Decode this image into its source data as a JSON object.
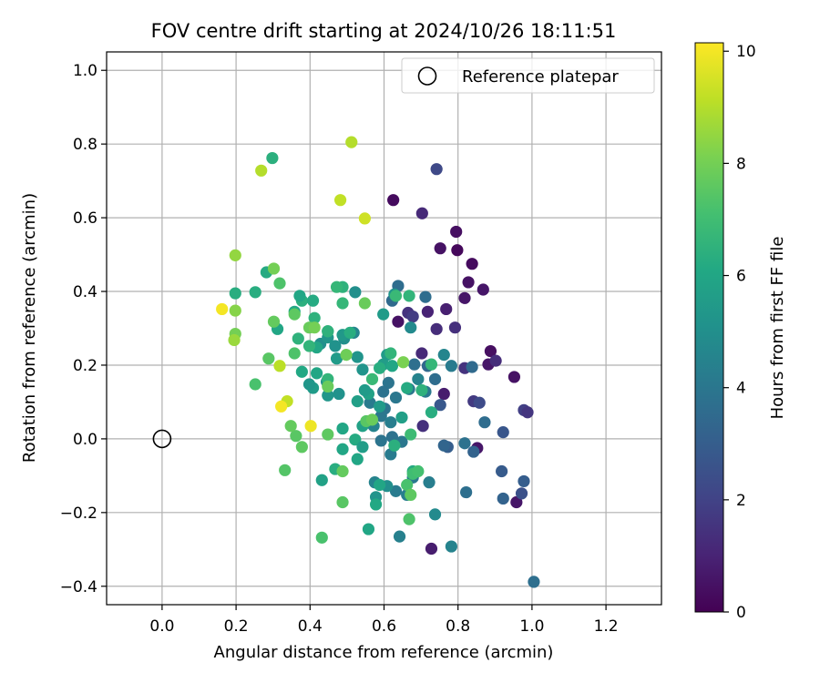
{
  "chart_data": {
    "type": "scatter",
    "title": "FOV centre drift starting at 2024/10/26 18:11:51",
    "xlabel": "Angular distance from reference (arcmin)",
    "ylabel": "Rotation from reference (arcmin)",
    "xlim": [
      -0.15,
      1.35
    ],
    "ylim": [
      -0.45,
      1.05
    ],
    "grid": true,
    "xticks": [
      0.0,
      0.2,
      0.4,
      0.6,
      0.8,
      1.0,
      1.2
    ],
    "xtick_labels": [
      "0.0",
      "0.2",
      "0.4",
      "0.6",
      "0.8",
      "1.0",
      "1.2"
    ],
    "yticks": [
      -0.4,
      -0.2,
      0.0,
      0.2,
      0.4,
      0.6,
      0.8,
      1.0
    ],
    "ytick_labels": [
      "−0.4",
      "−0.2",
      "0.0",
      "0.2",
      "0.4",
      "0.6",
      "0.8",
      "1.0"
    ],
    "legend": {
      "position": "top-right",
      "label": "Reference platepar"
    },
    "reference_point": {
      "x": 0.0,
      "y": 0.0
    },
    "colorbar": {
      "label": "Hours from first FF file",
      "range": [
        0,
        10.15
      ],
      "ticks": [
        0,
        2,
        4,
        6,
        8,
        10
      ],
      "tick_labels": [
        "0",
        "2",
        "4",
        "6",
        "8",
        "10"
      ],
      "colormap": "viridis"
    },
    "points": [
      [
        0.625,
        0.648,
        0.3
      ],
      [
        0.703,
        0.612,
        1.2
      ],
      [
        0.795,
        0.562,
        0.4
      ],
      [
        0.752,
        0.517,
        0.5
      ],
      [
        0.798,
        0.512,
        0.2
      ],
      [
        0.838,
        0.475,
        0.3
      ],
      [
        0.828,
        0.425,
        0.5
      ],
      [
        0.868,
        0.405,
        0.6
      ],
      [
        0.818,
        0.382,
        0.6
      ],
      [
        0.742,
        0.732,
        2.2
      ],
      [
        0.768,
        0.352,
        0.9
      ],
      [
        0.718,
        0.345,
        1.0
      ],
      [
        0.665,
        0.342,
        1.5
      ],
      [
        0.678,
        0.332,
        1.8
      ],
      [
        0.638,
        0.318,
        0.5
      ],
      [
        0.742,
        0.298,
        1.3
      ],
      [
        0.792,
        0.302,
        1.4
      ],
      [
        0.888,
        0.238,
        0.4
      ],
      [
        0.882,
        0.202,
        0.6
      ],
      [
        0.902,
        0.212,
        1.3
      ],
      [
        0.702,
        0.232,
        1.2
      ],
      [
        0.762,
        0.122,
        0.8
      ],
      [
        0.818,
        0.192,
        1.5
      ],
      [
        0.842,
        0.102,
        1.7
      ],
      [
        0.952,
        0.168,
        0.5
      ],
      [
        0.978,
        0.078,
        1.9
      ],
      [
        0.988,
        0.072,
        1.6
      ],
      [
        0.852,
        -0.025,
        0.6
      ],
      [
        0.958,
        -0.172,
        0.6
      ],
      [
        0.728,
        -0.298,
        0.8
      ],
      [
        0.705,
        0.035,
        1.4
      ],
      [
        0.752,
        0.092,
        2.8
      ],
      [
        0.858,
        0.098,
        2.3
      ],
      [
        0.922,
        0.018,
        2.7
      ],
      [
        0.918,
        -0.088,
        2.9
      ],
      [
        0.978,
        -0.115,
        3.0
      ],
      [
        0.972,
        -0.148,
        2.5
      ],
      [
        0.922,
        -0.162,
        3.2
      ],
      [
        0.842,
        -0.035,
        3.2
      ],
      [
        0.772,
        -0.022,
        3.0
      ],
      [
        0.762,
        -0.018,
        3.3
      ],
      [
        0.818,
        -0.012,
        3.8
      ],
      [
        0.822,
        -0.145,
        3.7
      ],
      [
        0.872,
        0.045,
        3.6
      ],
      [
        1.005,
        -0.388,
        3.7
      ],
      [
        0.622,
        0.375,
        3.5
      ],
      [
        0.638,
        0.415,
        3.6
      ],
      [
        0.712,
        0.385,
        3.6
      ],
      [
        0.682,
        0.202,
        3.7
      ],
      [
        0.718,
        0.198,
        3.4
      ],
      [
        0.838,
        0.195,
        3.5
      ],
      [
        0.782,
        0.198,
        4.2
      ],
      [
        0.738,
        0.162,
        3.6
      ],
      [
        0.712,
        0.128,
        4.1
      ],
      [
        0.668,
        0.135,
        4.0
      ],
      [
        0.632,
        0.112,
        4.0
      ],
      [
        0.612,
        0.152,
        3.9
      ],
      [
        0.598,
        0.128,
        3.8
      ],
      [
        0.562,
        0.098,
        4.2
      ],
      [
        0.602,
        0.082,
        3.9
      ],
      [
        0.592,
        0.062,
        4.0
      ],
      [
        0.618,
        0.045,
        4.3
      ],
      [
        0.572,
        0.035,
        4.5
      ],
      [
        0.622,
        0.005,
        3.8
      ],
      [
        0.592,
        -0.005,
        3.9
      ],
      [
        0.648,
        -0.008,
        4.0
      ],
      [
        0.618,
        -0.042,
        4.2
      ],
      [
        0.678,
        -0.105,
        4.1
      ],
      [
        0.722,
        -0.118,
        4.3
      ],
      [
        0.632,
        -0.142,
        4.2
      ],
      [
        0.662,
        -0.152,
        4.3
      ],
      [
        0.738,
        -0.205,
        4.8
      ],
      [
        0.782,
        -0.292,
        4.5
      ],
      [
        0.642,
        -0.265,
        4.4
      ],
      [
        0.575,
        -0.118,
        4.5
      ],
      [
        0.608,
        -0.128,
        5.0
      ],
      [
        0.578,
        -0.158,
        5.2
      ],
      [
        0.692,
        0.162,
        4.5
      ],
      [
        0.762,
        0.228,
        4.6
      ],
      [
        0.672,
        0.302,
        4.8
      ],
      [
        0.628,
        0.392,
        5.2
      ],
      [
        0.598,
        0.338,
        5.5
      ],
      [
        0.518,
        0.288,
        4.6
      ],
      [
        0.492,
        0.272,
        5.0
      ],
      [
        0.468,
        0.252,
        5.1
      ],
      [
        0.428,
        0.258,
        5.0
      ],
      [
        0.448,
        0.275,
        5.3
      ],
      [
        0.522,
        0.398,
        5.0
      ],
      [
        0.488,
        0.282,
        5.4
      ],
      [
        0.445,
        0.155,
        5.0
      ],
      [
        0.448,
        0.118,
        5.3
      ],
      [
        0.478,
        0.122,
        5.1
      ],
      [
        0.408,
        0.138,
        5.5
      ],
      [
        0.398,
        0.148,
        5.3
      ],
      [
        0.472,
        0.218,
        5.5
      ],
      [
        0.528,
        0.222,
        5.2
      ],
      [
        0.542,
        0.188,
        5.2
      ],
      [
        0.558,
        0.122,
        5.8
      ],
      [
        0.598,
        0.202,
        5.6
      ],
      [
        0.608,
        0.228,
        5.5
      ],
      [
        0.548,
        0.132,
        5.5
      ],
      [
        0.622,
        0.198,
        6.0
      ],
      [
        0.588,
        0.088,
        5.5
      ],
      [
        0.528,
        0.102,
        5.7
      ],
      [
        0.648,
        0.058,
        5.7
      ],
      [
        0.542,
        0.035,
        5.8
      ],
      [
        0.522,
        -0.002,
        6.2
      ],
      [
        0.542,
        -0.022,
        5.6
      ],
      [
        0.528,
        -0.055,
        6.0
      ],
      [
        0.488,
        -0.028,
        6.0
      ],
      [
        0.488,
        0.028,
        6.0
      ],
      [
        0.558,
        -0.245,
        6.0
      ],
      [
        0.578,
        -0.178,
        6.1
      ],
      [
        0.588,
        -0.125,
        6.0
      ],
      [
        0.678,
        -0.088,
        6.2
      ],
      [
        0.468,
        -0.082,
        6.3
      ],
      [
        0.432,
        -0.112,
        5.8
      ],
      [
        0.378,
        0.182,
        6.1
      ],
      [
        0.418,
        0.178,
        6.0
      ],
      [
        0.418,
        0.248,
        6.0
      ],
      [
        0.448,
        0.292,
        6.5
      ],
      [
        0.398,
        0.252,
        6.6
      ],
      [
        0.358,
        0.345,
        6.1
      ],
      [
        0.378,
        0.375,
        6.4
      ],
      [
        0.372,
        0.388,
        6.0
      ],
      [
        0.408,
        0.375,
        6.2
      ],
      [
        0.448,
        0.292,
        6.5
      ],
      [
        0.488,
        0.412,
        6.5
      ],
      [
        0.488,
        0.368,
        6.7
      ],
      [
        0.472,
        0.412,
        6.7
      ],
      [
        0.508,
        0.288,
        6.3
      ],
      [
        0.312,
        0.298,
        6.0
      ],
      [
        0.282,
        0.452,
        6.2
      ],
      [
        0.252,
        0.398,
        6.3
      ],
      [
        0.198,
        0.395,
        6.3
      ],
      [
        0.298,
        0.762,
        6.4
      ],
      [
        0.368,
        0.272,
        6.5
      ],
      [
        0.412,
        0.328,
        6.5
      ],
      [
        0.448,
        0.162,
        6.6
      ],
      [
        0.568,
        0.162,
        6.8
      ],
      [
        0.588,
        0.192,
        6.3
      ],
      [
        0.618,
        0.232,
        6.6
      ],
      [
        0.632,
        0.388,
        6.8
      ],
      [
        0.668,
        0.388,
        6.6
      ],
      [
        0.662,
        0.138,
        6.2
      ],
      [
        0.672,
        0.012,
        6.9
      ],
      [
        0.628,
        -0.018,
        6.4
      ],
      [
        0.702,
        0.132,
        6.5
      ],
      [
        0.728,
        0.202,
        6.7
      ],
      [
        0.728,
        0.072,
        6.3
      ],
      [
        0.678,
        -0.095,
        7.0
      ],
      [
        0.692,
        -0.088,
        7.1
      ],
      [
        0.662,
        -0.125,
        7.2
      ],
      [
        0.672,
        -0.152,
        7.6
      ],
      [
        0.668,
        -0.218,
        7.3
      ],
      [
        0.432,
        -0.268,
        7.2
      ],
      [
        0.488,
        -0.172,
        7.5
      ],
      [
        0.488,
        -0.088,
        7.7
      ],
      [
        0.448,
        0.012,
        7.6
      ],
      [
        0.552,
        0.048,
        7.5
      ],
      [
        0.568,
        0.052,
        7.8
      ],
      [
        0.362,
        0.008,
        7.5
      ],
      [
        0.378,
        -0.022,
        7.6
      ],
      [
        0.348,
        0.035,
        7.7
      ],
      [
        0.332,
        -0.085,
        7.4
      ],
      [
        0.288,
        0.218,
        7.5
      ],
      [
        0.252,
        0.148,
        7.2
      ],
      [
        0.302,
        0.318,
        7.7
      ],
      [
        0.318,
        0.422,
        7.3
      ],
      [
        0.358,
        0.232,
        7.3
      ],
      [
        0.358,
        0.338,
        7.6
      ],
      [
        0.398,
        0.302,
        7.8
      ],
      [
        0.412,
        0.302,
        8.0
      ],
      [
        0.448,
        0.142,
        7.8
      ],
      [
        0.498,
        0.228,
        7.9
      ],
      [
        0.548,
        0.368,
        7.8
      ],
      [
        0.652,
        0.208,
        8.1
      ],
      [
        0.302,
        0.462,
        8.0
      ],
      [
        0.198,
        0.285,
        8.0
      ],
      [
        0.198,
        0.498,
        8.5
      ],
      [
        0.198,
        0.348,
        8.3
      ],
      [
        0.195,
        0.268,
        8.6
      ],
      [
        0.318,
        0.198,
        9.1
      ],
      [
        0.338,
        0.102,
        9.2
      ],
      [
        0.268,
        0.728,
        9.0
      ],
      [
        0.482,
        0.648,
        9.2
      ],
      [
        0.512,
        0.805,
        9.0
      ],
      [
        0.548,
        0.598,
        9.4
      ],
      [
        0.162,
        0.352,
        10.0
      ],
      [
        0.322,
        0.088,
        10.0
      ],
      [
        0.402,
        0.035,
        9.9
      ]
    ]
  }
}
